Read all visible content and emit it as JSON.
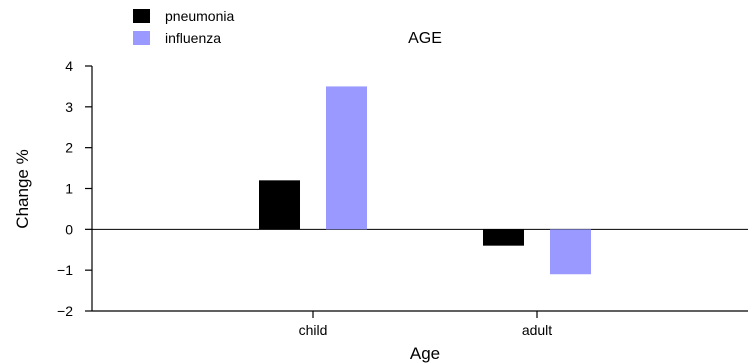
{
  "chart_data": {
    "type": "bar",
    "title": "AGE",
    "xlabel": "Age",
    "ylabel": "Change %",
    "categories": [
      "child",
      "adult"
    ],
    "series": [
      {
        "name": "pneumonia",
        "color": "#000000",
        "values": [
          1.2,
          -0.4
        ]
      },
      {
        "name": "influenza",
        "color": "#9999ff",
        "values": [
          3.5,
          -1.1
        ]
      }
    ],
    "ylim": [
      -2,
      4
    ],
    "yticks": [
      -2,
      -1,
      0,
      1,
      2,
      3,
      4
    ],
    "ytick_labels": [
      "−2",
      "−1",
      "0",
      "1",
      "2",
      "3",
      "4"
    ],
    "zero_line": true,
    "grid": false,
    "legend_position": "top-left"
  }
}
